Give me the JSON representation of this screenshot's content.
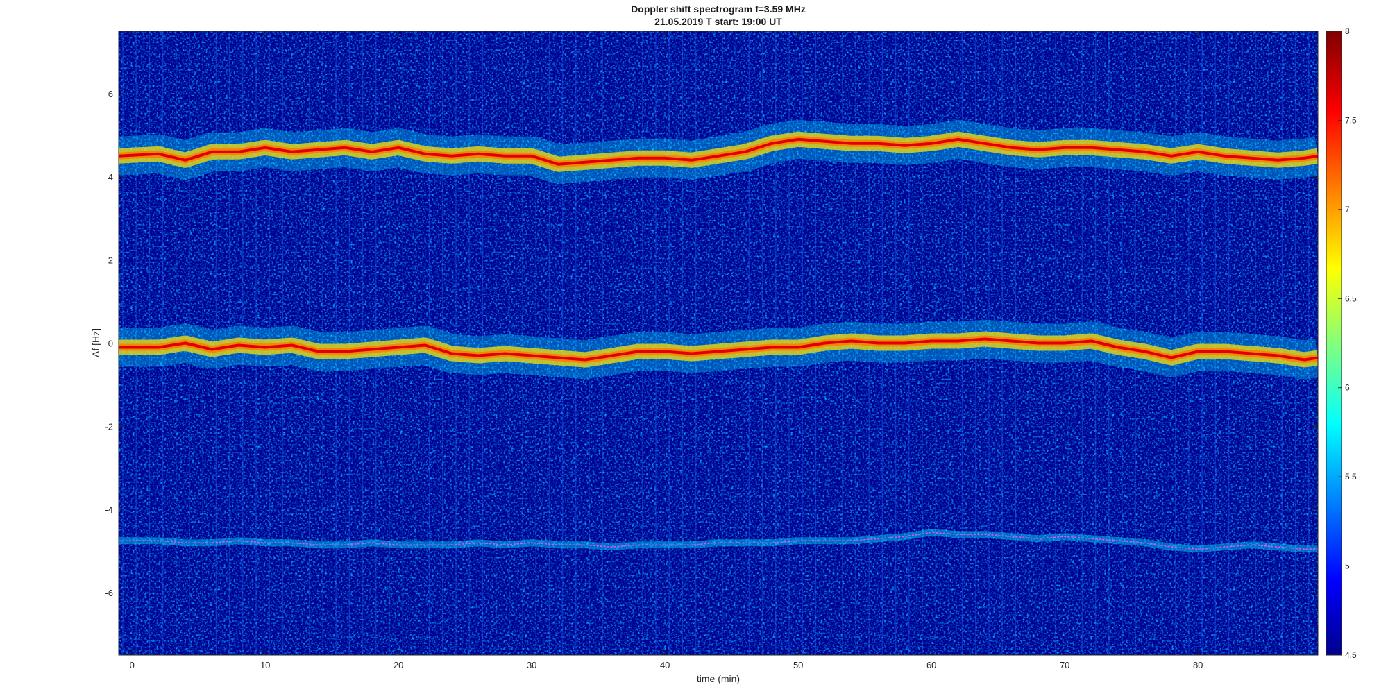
{
  "chart_data": {
    "type": "heatmap",
    "title_line1": "Doppler shift spectrogram f=3.59 MHz",
    "title_line2": "21.05.2019   T start: 19:00 UT",
    "xlabel": "time (min)",
    "ylabel": "Δf [Hz]",
    "xlim": [
      -1,
      89
    ],
    "ylim": [
      -7.5,
      7.5
    ],
    "xticks": [
      0,
      10,
      20,
      30,
      40,
      50,
      60,
      70,
      80
    ],
    "yticks": [
      -6,
      -4,
      -2,
      0,
      2,
      4,
      6
    ],
    "colormap": "jet",
    "clim": [
      4.5,
      8
    ],
    "colorbar_ticks": [
      4.5,
      5,
      5.5,
      6,
      6.5,
      7,
      7.5,
      8
    ],
    "traces": [
      {
        "time": [
          -1,
          2,
          4,
          6,
          8,
          10,
          12,
          14,
          16,
          18,
          20,
          22,
          24,
          26,
          28,
          30,
          32,
          34,
          36,
          38,
          40,
          42,
          44,
          46,
          48,
          50,
          52,
          54,
          56,
          58,
          60,
          62,
          64,
          66,
          68,
          70,
          72,
          74,
          76,
          78,
          80,
          82,
          84,
          86,
          88,
          89
        ],
        "df": [
          4.5,
          4.55,
          4.4,
          4.6,
          4.6,
          4.7,
          4.6,
          4.65,
          4.7,
          4.6,
          4.7,
          4.55,
          4.5,
          4.55,
          4.5,
          4.5,
          4.3,
          4.35,
          4.4,
          4.45,
          4.45,
          4.4,
          4.5,
          4.6,
          4.8,
          4.9,
          4.85,
          4.8,
          4.8,
          4.75,
          4.8,
          4.9,
          4.8,
          4.7,
          4.65,
          4.7,
          4.7,
          4.65,
          4.6,
          4.5,
          4.6,
          4.5,
          4.45,
          4.4,
          4.45,
          4.5
        ]
      },
      {
        "time": [
          -1,
          2,
          4,
          6,
          8,
          10,
          12,
          14,
          16,
          18,
          20,
          22,
          24,
          26,
          28,
          30,
          32,
          34,
          36,
          38,
          40,
          42,
          44,
          46,
          48,
          50,
          52,
          54,
          56,
          58,
          60,
          62,
          64,
          66,
          68,
          70,
          72,
          74,
          76,
          78,
          80,
          82,
          84,
          86,
          88,
          89
        ],
        "df": [
          -0.1,
          -0.1,
          0.0,
          -0.15,
          -0.05,
          -0.1,
          -0.05,
          -0.2,
          -0.2,
          -0.15,
          -0.1,
          -0.05,
          -0.25,
          -0.3,
          -0.25,
          -0.3,
          -0.35,
          -0.4,
          -0.3,
          -0.2,
          -0.2,
          -0.25,
          -0.2,
          -0.15,
          -0.1,
          -0.1,
          0.0,
          0.05,
          0.0,
          0.0,
          0.05,
          0.05,
          0.1,
          0.05,
          0.0,
          0.0,
          0.05,
          -0.1,
          -0.2,
          -0.35,
          -0.2,
          -0.2,
          -0.25,
          -0.3,
          -0.4,
          -0.35
        ]
      },
      {
        "time": [
          -1,
          2,
          4,
          6,
          8,
          10,
          12,
          14,
          16,
          18,
          20,
          22,
          24,
          26,
          28,
          30,
          32,
          34,
          36,
          38,
          40,
          42,
          44,
          46,
          48,
          50,
          52,
          54,
          56,
          58,
          60,
          62,
          64,
          66,
          68,
          70,
          72,
          74,
          76,
          78,
          80,
          82,
          84,
          86,
          88,
          89
        ],
        "df": [
          -4.75,
          -4.75,
          -4.8,
          -4.8,
          -4.75,
          -4.8,
          -4.8,
          -4.85,
          -4.85,
          -4.8,
          -4.85,
          -4.85,
          -4.85,
          -4.8,
          -4.85,
          -4.8,
          -4.85,
          -4.85,
          -4.9,
          -4.85,
          -4.85,
          -4.85,
          -4.8,
          -4.8,
          -4.8,
          -4.75,
          -4.75,
          -4.75,
          -4.7,
          -4.65,
          -4.55,
          -4.6,
          -4.6,
          -4.65,
          -4.7,
          -4.65,
          -4.7,
          -4.75,
          -4.8,
          -4.9,
          -4.95,
          -4.9,
          -4.85,
          -4.9,
          -4.95,
          -4.95
        ]
      }
    ]
  },
  "colors": {
    "background": "#00008f",
    "noise": "#0a3cff",
    "speckle": "#00e5ff",
    "trace_core": "#e00000",
    "trace_halo": "#ffe000",
    "trace_mid": "#ff7a00",
    "lower_trace": "#ff40ff"
  }
}
